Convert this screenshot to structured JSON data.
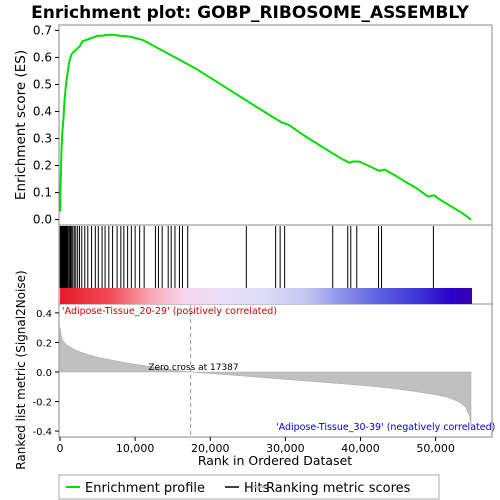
{
  "chart_data": {
    "type": "line",
    "title": "Enrichment plot: GOBP_RIBOSOME_ASSEMBLY",
    "es_panel": {
      "ylabel": "Enrichment score (ES)",
      "ylim": [
        -0.02,
        0.72
      ],
      "yticks": [
        "0.0",
        "0.1",
        "0.2",
        "0.3",
        "0.4",
        "0.5",
        "0.6",
        "0.7"
      ],
      "ytick_values": [
        0.0,
        0.1,
        0.2,
        0.3,
        0.4,
        0.5,
        0.6,
        0.7
      ],
      "line_color": "#00dd00",
      "series": [
        {
          "x": [
            0,
            100,
            200,
            300,
            450,
            600,
            800,
            1000,
            1200,
            1500,
            1800,
            2200,
            2600,
            3000,
            3500,
            4000,
            4500,
            5000,
            5500,
            6000,
            6500,
            7000,
            7500,
            8000,
            8500,
            9000,
            9500,
            10000,
            11000,
            12000,
            13000,
            14000,
            15000,
            16000,
            17000,
            18000,
            20000,
            22000,
            24000,
            26000,
            28000,
            29500,
            30500,
            32000,
            34000,
            36000,
            37500,
            38500,
            39000,
            39800,
            41000,
            42500,
            43200,
            44500,
            46000,
            47500,
            49000,
            49800,
            50500,
            52000,
            53500,
            54700
          ],
          "y": [
            0.03,
            0.16,
            0.26,
            0.32,
            0.37,
            0.44,
            0.5,
            0.54,
            0.58,
            0.61,
            0.62,
            0.63,
            0.64,
            0.66,
            0.665,
            0.67,
            0.675,
            0.68,
            0.68,
            0.682,
            0.684,
            0.684,
            0.682,
            0.68,
            0.679,
            0.678,
            0.676,
            0.672,
            0.665,
            0.65,
            0.635,
            0.62,
            0.605,
            0.59,
            0.575,
            0.56,
            0.525,
            0.49,
            0.455,
            0.42,
            0.385,
            0.36,
            0.35,
            0.32,
            0.285,
            0.25,
            0.225,
            0.21,
            0.215,
            0.215,
            0.2,
            0.18,
            0.185,
            0.165,
            0.14,
            0.115,
            0.085,
            0.09,
            0.075,
            0.05,
            0.025,
            0.0
          ]
        }
      ]
    },
    "hits": [
      30,
      80,
      120,
      180,
      240,
      300,
      360,
      420,
      480,
      560,
      640,
      720,
      800,
      900,
      1000,
      1100,
      1250,
      1400,
      1550,
      1700,
      1900,
      2100,
      2350,
      2600,
      2900,
      3300,
      3700,
      4200,
      4700,
      5100,
      5600,
      6000,
      6500,
      7000,
      7600,
      8100,
      8500,
      9000,
      9500,
      10000,
      10600,
      11200,
      12700,
      13100,
      13600,
      14400,
      14800,
      15300,
      15900,
      16300,
      17000,
      24800,
      28700,
      29300,
      29900,
      36300,
      38300,
      38700,
      39500,
      42400,
      42800,
      49700
    ],
    "rank_panel": {
      "ylabel": "Ranked list metric (Signal2Noise)",
      "ylim": [
        -0.44,
        0.46
      ],
      "yticks": [
        "0.4",
        "0.2",
        "0.0",
        "-0.2",
        "-0.4"
      ],
      "ytick_values": [
        0.4,
        0.2,
        0.0,
        -0.2,
        -0.4
      ],
      "fill_color": "#c0c0c0",
      "metric_curve": {
        "x": [
          0,
          100,
          300,
          600,
          1000,
          2000,
          3000,
          5000,
          7000,
          9000,
          11000,
          13000,
          15000,
          17387,
          20000,
          25000,
          30000,
          35000,
          40000,
          44000,
          47000,
          49500,
          51500,
          53000,
          54000,
          54500,
          54700
        ],
        "y": [
          0.3,
          0.26,
          0.22,
          0.2,
          0.18,
          0.15,
          0.13,
          0.1,
          0.08,
          0.06,
          0.045,
          0.03,
          0.015,
          0.0,
          -0.01,
          -0.03,
          -0.05,
          -0.07,
          -0.09,
          -0.11,
          -0.13,
          -0.15,
          -0.17,
          -0.2,
          -0.24,
          -0.3,
          -0.36
        ]
      },
      "zero_cross_label": "Zero cross at 17387",
      "zero_cross_x": 17387,
      "positive_label": "'Adipose-Tissue_20-29' (positively correlated)",
      "negative_label": "'Adipose-Tissue_30-39' (negatively correlated)",
      "positive_color": "#cc0000",
      "negative_color": "#0000cc"
    },
    "xlabel": "Rank in Ordered Dataset",
    "xlim": [
      0,
      57500
    ],
    "xticks": [
      "0",
      "10,000",
      "20,000",
      "30,000",
      "40,000",
      "50,000"
    ],
    "xtick_values": [
      0,
      10000,
      20000,
      30000,
      40000,
      50000
    ],
    "legend": {
      "placement": "bottom",
      "entries": [
        {
          "label": "Enrichment profile",
          "color": "#00dd00"
        },
        {
          "label": "Hits",
          "color": "#000000"
        },
        {
          "label": "Ranking metric scores",
          "color": "#c0c0c0"
        }
      ]
    }
  }
}
